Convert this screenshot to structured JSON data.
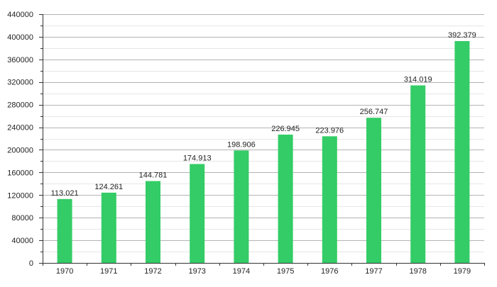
{
  "chart_data": {
    "type": "bar",
    "categories": [
      "1970",
      "1971",
      "1972",
      "1973",
      "1974",
      "1975",
      "1976",
      "1977",
      "1978",
      "1979"
    ],
    "values": [
      113021,
      124261,
      144781,
      174913,
      198906,
      226945,
      223976,
      256747,
      314019,
      392379
    ],
    "data_labels": [
      "113.021",
      "124.261",
      "144.781",
      "174.913",
      "198.906",
      "226.945",
      "223.976",
      "256.747",
      "314.019",
      "392.379"
    ],
    "y_ticks": [
      "0",
      "40000",
      "80000",
      "120000",
      "160000",
      "200000",
      "240000",
      "280000",
      "320000",
      "360000",
      "400000",
      "440000"
    ],
    "ylim": [
      0,
      440000
    ],
    "y_major_step": 40000,
    "y_minor_step": 20000,
    "grid": true,
    "legend": "none",
    "title": "",
    "xlabel": "",
    "ylabel": "",
    "colors": {
      "bar": "#33cc66"
    }
  }
}
